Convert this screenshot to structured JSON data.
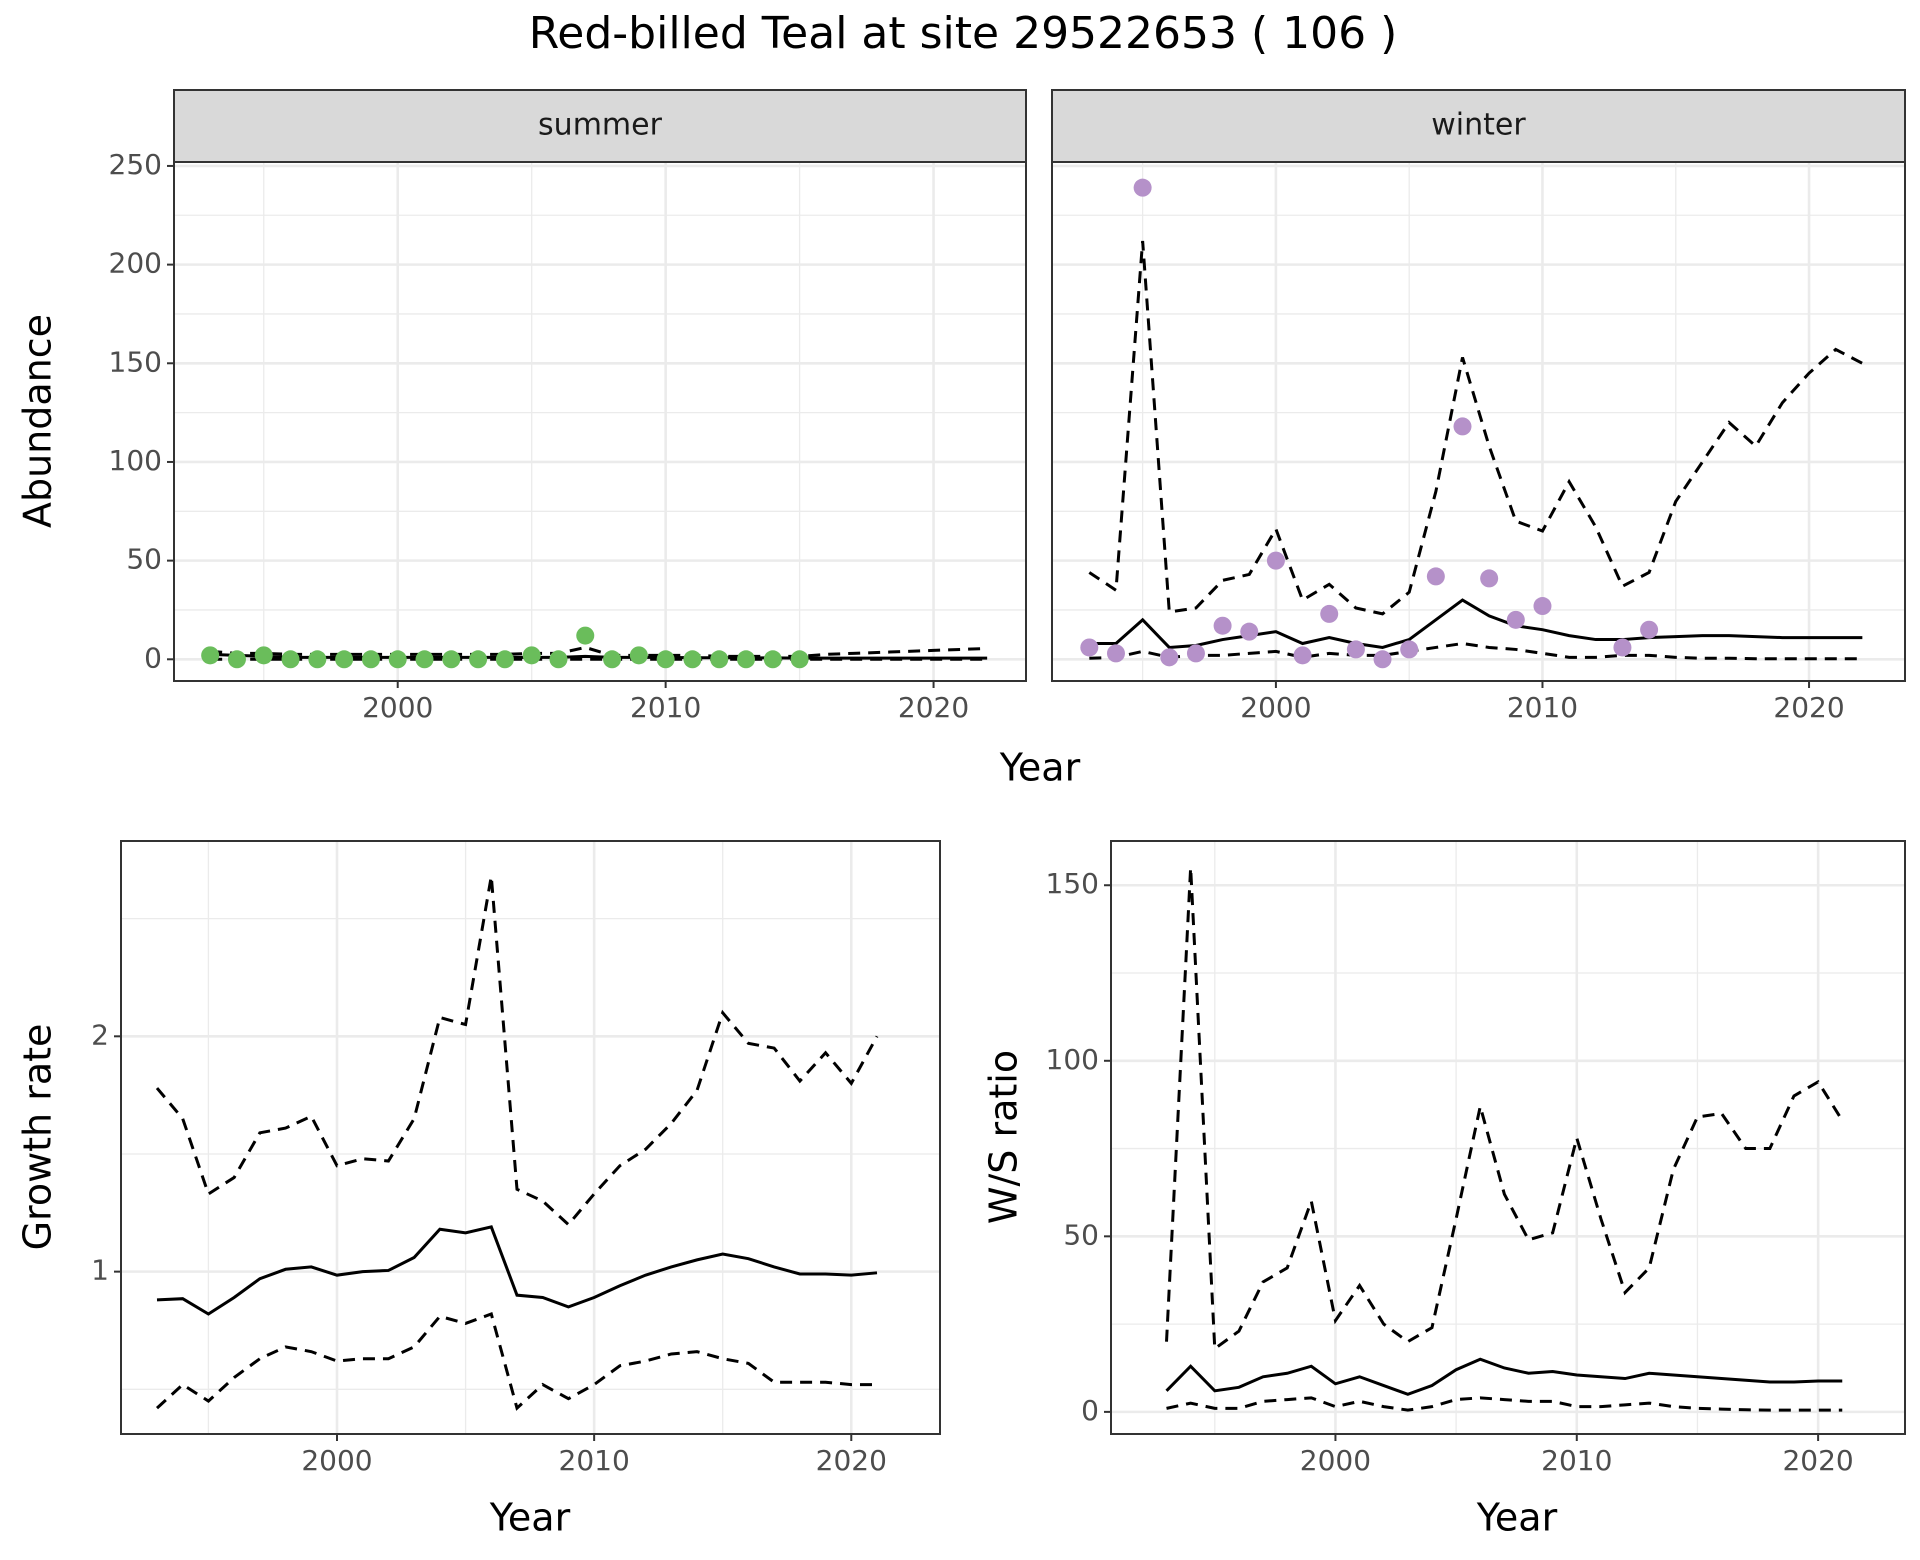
{
  "title": "Red-billed Teal at site 29522653 ( 106 )",
  "chart_data": [
    {
      "type": "line",
      "strip": "summer",
      "y_label": "Abundance",
      "x_label": "Year",
      "x": [
        1993,
        1994,
        1995,
        1996,
        1997,
        1998,
        1999,
        2000,
        2001,
        2002,
        2003,
        2004,
        2005,
        2006,
        2007,
        2008,
        2009,
        2010,
        2011,
        2012,
        2013,
        2014,
        2015,
        2016,
        2017,
        2018,
        2019,
        2020,
        2021,
        2022
      ],
      "series": [
        {
          "style": "dashed",
          "color": "#000000",
          "values": [
            4,
            3,
            3,
            2.5,
            2.5,
            2.5,
            2.5,
            2.5,
            2.5,
            2.5,
            2.5,
            2.5,
            3,
            3,
            6,
            2,
            2,
            2,
            2,
            1.5,
            1.5,
            1.5,
            1.5,
            2.5,
            3,
            3.5,
            4,
            4.5,
            5,
            5.5
          ]
        },
        {
          "style": "dashed",
          "color": "#000000",
          "values": [
            0,
            0,
            0,
            0,
            0,
            0,
            0,
            0,
            0,
            0,
            0,
            0,
            0,
            0,
            0,
            0,
            0,
            0,
            0,
            0,
            0,
            0,
            0,
            0,
            0,
            0,
            0,
            0,
            0,
            0
          ]
        },
        {
          "style": "solid",
          "color": "#000000",
          "values": [
            2.5,
            2,
            1.5,
            1,
            1,
            1,
            1,
            1,
            1,
            1,
            1,
            1,
            1,
            1,
            1.5,
            1,
            1,
            1,
            0.8,
            0.8,
            0.7,
            0.7,
            0.6,
            0.6,
            0.6,
            0.6,
            0.6,
            0.6,
            0.6,
            0.6
          ]
        },
        {
          "style": "points",
          "color": "#6abd5b",
          "values": [
            2,
            0,
            2,
            0,
            0,
            0,
            0,
            0,
            0,
            0,
            0,
            0,
            2,
            0,
            12,
            0,
            2,
            0,
            0,
            0,
            0,
            0,
            0,
            null,
            null,
            null,
            null,
            null,
            null,
            null
          ]
        }
      ],
      "xlim": [
        1991.65,
        2023.45
      ],
      "xticks": [
        2000,
        2010,
        2020
      ],
      "ylim": [
        -11,
        252
      ],
      "yticks": [
        0,
        50,
        100,
        150,
        200,
        250
      ],
      "grid": true
    },
    {
      "type": "line",
      "strip": "winter",
      "x": [
        1993,
        1994,
        1995,
        1996,
        1997,
        1998,
        1999,
        2000,
        2001,
        2002,
        2003,
        2004,
        2005,
        2006,
        2007,
        2008,
        2009,
        2010,
        2011,
        2012,
        2013,
        2014,
        2015,
        2016,
        2017,
        2018,
        2019,
        2020,
        2021,
        2022
      ],
      "series": [
        {
          "style": "dashed",
          "color": "#000000",
          "values": [
            44,
            35,
            212,
            24,
            26,
            40,
            43,
            66,
            30,
            38,
            26,
            23,
            34,
            85,
            153,
            108,
            70,
            65,
            90,
            67,
            37,
            44,
            80,
            100,
            120,
            108,
            130,
            145,
            157,
            150
          ]
        },
        {
          "style": "dashed",
          "color": "#000000",
          "values": [
            0.5,
            1,
            4,
            1,
            2,
            2,
            3,
            4,
            1,
            3,
            2,
            2,
            4,
            6,
            8,
            6,
            5,
            3,
            1,
            1,
            2,
            2,
            1,
            0.5,
            0.5,
            0.3,
            0.3,
            0.3,
            0.3,
            0.3
          ]
        },
        {
          "style": "solid",
          "color": "#000000",
          "values": [
            8,
            8,
            20,
            6,
            7,
            10,
            12,
            14,
            8,
            11,
            8,
            6,
            10,
            20,
            30,
            22,
            17,
            15,
            12,
            10,
            10,
            11,
            11.5,
            12,
            12,
            11.5,
            11,
            11,
            11,
            11
          ]
        },
        {
          "style": "points",
          "color": "#b591c9",
          "values": [
            6,
            3,
            239,
            1,
            3,
            17,
            14,
            50,
            2,
            23,
            5,
            0,
            5,
            42,
            118,
            41,
            20,
            27,
            null,
            null,
            6,
            15,
            null,
            null,
            null,
            null,
            null,
            null,
            null,
            null
          ]
        }
      ],
      "xlim": [
        1991.6,
        2023.6
      ],
      "xticks": [
        2000,
        2010,
        2020
      ],
      "ylim": [
        -11,
        252
      ],
      "yticks": [
        0,
        50,
        100,
        150,
        200,
        250
      ],
      "grid": true
    },
    {
      "type": "line",
      "y_label": "Growth rate",
      "x_label": "Year",
      "x": [
        1993,
        1994,
        1995,
        1996,
        1997,
        1998,
        1999,
        2000,
        2001,
        2002,
        2003,
        2004,
        2005,
        2006,
        2007,
        2008,
        2009,
        2010,
        2011,
        2012,
        2013,
        2014,
        2015,
        2016,
        2017,
        2018,
        2019,
        2020,
        2021
      ],
      "series": [
        {
          "style": "dashed",
          "color": "#000000",
          "values": [
            1.78,
            1.65,
            1.33,
            1.4,
            1.59,
            1.61,
            1.66,
            1.45,
            1.48,
            1.47,
            1.65,
            2.08,
            2.05,
            2.68,
            1.35,
            1.3,
            1.2,
            1.33,
            1.45,
            1.52,
            1.63,
            1.77,
            2.1,
            1.97,
            1.95,
            1.81,
            1.93,
            1.8,
            2.0
          ]
        },
        {
          "style": "dashed",
          "color": "#000000",
          "values": [
            0.42,
            0.52,
            0.45,
            0.55,
            0.63,
            0.68,
            0.66,
            0.62,
            0.63,
            0.63,
            0.68,
            0.81,
            0.78,
            0.82,
            0.42,
            0.52,
            0.46,
            0.52,
            0.6,
            0.62,
            0.65,
            0.66,
            0.63,
            0.61,
            0.53,
            0.53,
            0.53,
            0.52,
            0.52
          ]
        },
        {
          "style": "solid",
          "color": "#000000",
          "values": [
            0.88,
            0.885,
            0.82,
            0.89,
            0.97,
            1.01,
            1.02,
            0.985,
            1.0,
            1.005,
            1.06,
            1.18,
            1.165,
            1.19,
            0.9,
            0.89,
            0.85,
            0.89,
            0.94,
            0.985,
            1.02,
            1.05,
            1.075,
            1.055,
            1.02,
            0.99,
            0.99,
            0.985,
            0.995
          ]
        }
      ],
      "xlim": [
        1991.6,
        2023.45
      ],
      "xticks": [
        2000,
        2010,
        2020
      ],
      "ylim": [
        0.31,
        2.83
      ],
      "yticks": [
        1,
        2
      ],
      "grid": true
    },
    {
      "type": "line",
      "y_label": "W/S ratio",
      "x_label": "Year",
      "x": [
        1993,
        1994,
        1995,
        1996,
        1997,
        1998,
        1999,
        2000,
        2001,
        2002,
        2003,
        2004,
        2005,
        2006,
        2007,
        2008,
        2009,
        2010,
        2011,
        2012,
        2013,
        2014,
        2015,
        2016,
        2017,
        2018,
        2019,
        2020,
        2021
      ],
      "series": [
        {
          "style": "dashed",
          "color": "#000000",
          "values": [
            20,
            155,
            18,
            23,
            37,
            41,
            60,
            26,
            36,
            25,
            20,
            24,
            55,
            87,
            62,
            49,
            51,
            78,
            55,
            34,
            41,
            69,
            84,
            85,
            75,
            75,
            90,
            94,
            83
          ]
        },
        {
          "style": "dashed",
          "color": "#000000",
          "values": [
            1,
            2.5,
            1,
            1,
            3,
            3.5,
            4,
            1.5,
            3,
            1.5,
            0.5,
            1.5,
            3.5,
            4,
            3.5,
            3,
            3,
            1.5,
            1.5,
            2,
            2.5,
            1.5,
            1,
            0.8,
            0.6,
            0.5,
            0.5,
            0.5,
            0.5
          ]
        },
        {
          "style": "solid",
          "color": "#000000",
          "values": [
            6,
            13,
            6,
            7,
            10,
            11,
            13,
            8,
            10,
            7.5,
            5,
            7.5,
            12,
            15,
            12.5,
            11,
            11.5,
            10.5,
            10,
            9.5,
            11,
            10.5,
            10,
            9.5,
            9,
            8.5,
            8.5,
            8.8,
            8.8
          ]
        }
      ],
      "xlim": [
        1990.7,
        2023.6
      ],
      "xticks": [
        2000,
        2010,
        2020
      ],
      "ylim": [
        -6.3,
        162.6
      ],
      "yticks": [
        0,
        50,
        100,
        150
      ],
      "grid": true
    }
  ]
}
